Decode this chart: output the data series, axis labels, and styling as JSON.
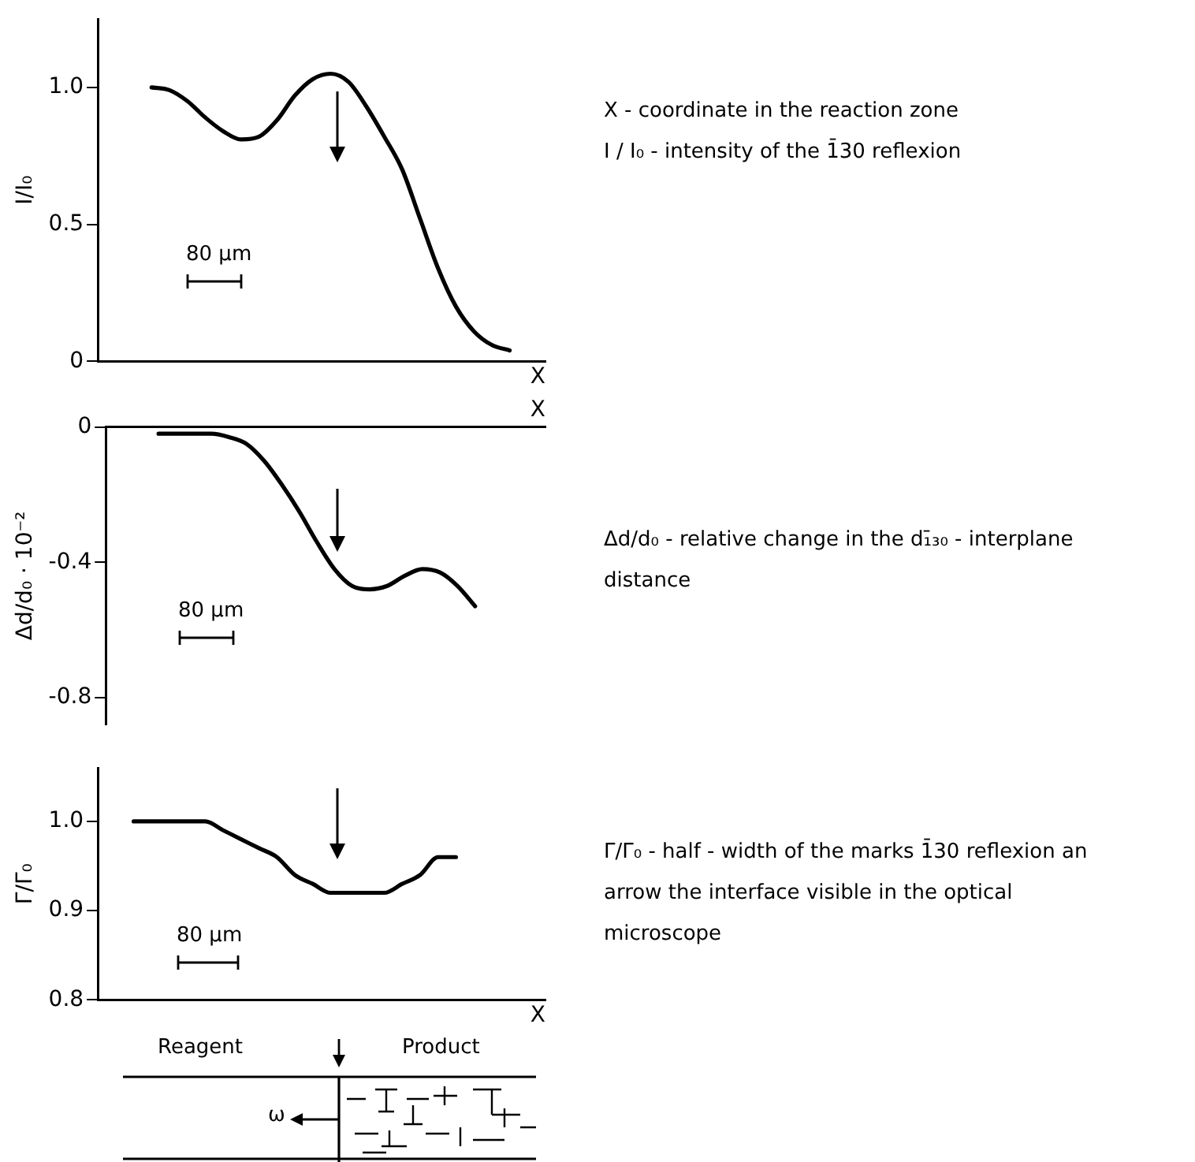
{
  "chart_data": [
    {
      "type": "line",
      "ylabel": "I/I₀",
      "xlabel": "X",
      "categories": [
        null,
        null,
        null,
        null,
        null,
        null,
        null,
        null,
        null,
        null,
        null,
        null,
        null,
        null,
        null,
        null,
        null,
        null,
        null,
        null,
        null,
        null,
        null,
        null,
        null,
        null
      ],
      "series": [
        {
          "color": "#000000",
          "values": [
            null,
            null,
            null,
            1.0,
            0.99,
            0.95,
            0.89,
            0.84,
            0.81,
            0.82,
            0.88,
            0.97,
            1.03,
            1.05,
            1.02,
            0.93,
            0.82,
            0.7,
            0.52,
            0.34,
            0.2,
            0.11,
            0.06,
            0.04,
            null,
            null
          ]
        }
      ],
      "ylim": [
        0,
        1.25
      ],
      "yticks": [
        0,
        0.5,
        {
          "value": 1,
          "label": "1.0"
        }
      ],
      "tick_labels": "y",
      "grid": false,
      "legend": false,
      "marker": "none",
      "line_style": "solid",
      "annotations": [
        "80 µm",
        "X - coordinate in the reaction zone",
        "I / I₀ - intensity of the 1̄30 reflexion"
      ]
    },
    {
      "type": "line",
      "ylabel": "Δd/d₀ · 10⁻²",
      "xlabel": "X",
      "categories": [
        null,
        null,
        null,
        null,
        null,
        null,
        null,
        null,
        null,
        null,
        null,
        null,
        null,
        null,
        null,
        null,
        null,
        null,
        null,
        null,
        null,
        null,
        null,
        null,
        null,
        null
      ],
      "series": [
        {
          "color": "#000000",
          "values": [
            null,
            null,
            null,
            -0.02,
            -0.02,
            -0.02,
            -0.02,
            -0.03,
            -0.05,
            -0.1,
            -0.17,
            -0.25,
            -0.34,
            -0.42,
            -0.47,
            -0.48,
            -0.47,
            -0.44,
            -0.42,
            -0.43,
            -0.47,
            -0.53,
            null,
            null,
            null,
            null
          ]
        }
      ],
      "ylim": [
        -0.88,
        0
      ],
      "yticks": [
        0,
        -0.4,
        -0.8
      ],
      "tick_labels": "y",
      "grid": false,
      "legend": false,
      "marker": "none",
      "line_style": "solid",
      "annotations": [
        "80 µm",
        "Δd/d₀ - relative change in the d₁̄₃₀ - interplane distance"
      ]
    },
    {
      "type": "line",
      "ylabel": "Γ/Γ₀",
      "xlabel": "X",
      "categories": [
        null,
        null,
        null,
        null,
        null,
        null,
        null,
        null,
        null,
        null,
        null,
        null,
        null,
        null,
        null,
        null,
        null,
        null,
        null,
        null,
        null,
        null,
        null,
        null,
        null,
        null
      ],
      "series": [
        {
          "color": "#000000",
          "values": [
            null,
            null,
            1.0,
            1.0,
            1.0,
            1.0,
            1.0,
            0.99,
            0.98,
            0.97,
            0.96,
            0.94,
            0.93,
            0.92,
            0.92,
            0.92,
            0.92,
            0.93,
            0.94,
            0.96,
            0.96,
            null,
            null,
            null,
            null,
            null
          ]
        }
      ],
      "ylim": [
        0.8,
        1.06
      ],
      "yticks": [
        0.8,
        0.9,
        {
          "value": 1,
          "label": "1.0"
        }
      ],
      "tick_labels": "y",
      "grid": false,
      "legend": false,
      "marker": "none",
      "line_style": "solid",
      "annotations": [
        "80 µm",
        "Γ/Γ₀ - half - width of the marks 1̄30 reflexion an arrow the interface visible in the optical microscope",
        "Reagent",
        "Product",
        "ω"
      ]
    }
  ]
}
